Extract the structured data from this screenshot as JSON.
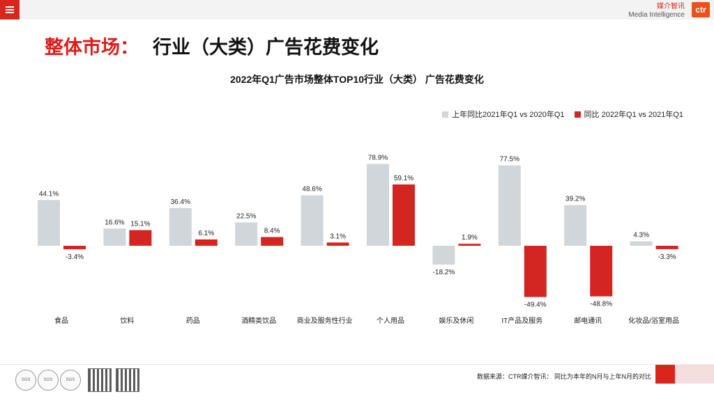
{
  "header": {
    "brand_cn": "媒介智讯",
    "brand_en": "Media Intelligence",
    "logo": "ctr"
  },
  "page_title": {
    "red": "整体市场：",
    "black": "行业（大类）广告花费变化"
  },
  "chart_data": {
    "type": "bar",
    "title": "2022年Q1广告市场整体TOP10行业（大类） 广告花费变化",
    "categories": [
      "食品",
      "饮料",
      "药品",
      "酒精类饮品",
      "商业及服务性行业",
      "个人用品",
      "娱乐及休闲",
      "IT产品及服务",
      "邮电通讯",
      "化妆品/浴室用品"
    ],
    "series": [
      {
        "name": "上年同比2021年Q1 vs 2020年Q1",
        "color": "#d0d6da",
        "values": [
          44.1,
          16.6,
          36.4,
          22.5,
          48.6,
          78.9,
          -18.2,
          77.5,
          39.2,
          4.3
        ],
        "labels": [
          "44.1%",
          "16.6%",
          "36.4%",
          "22.5%",
          "48.6%",
          "78.9%",
          "-18.2%",
          "77.5%",
          "39.2%",
          "4.3%"
        ]
      },
      {
        "name": "同比 2022年Q1 vs 2021年Q1",
        "color": "#d32620",
        "values": [
          -3.4,
          15.1,
          6.1,
          8.4,
          3.1,
          59.1,
          1.9,
          -49.4,
          -48.8,
          -3.3
        ],
        "labels": [
          "-3.4%",
          "15.1%",
          "6.1%",
          "8.4%",
          "3.1%",
          "59.1%",
          "1.9%",
          "-49.4%",
          "-48.8%",
          "-3.3%"
        ]
      }
    ],
    "ylim": [
      -55,
      85
    ],
    "legend_position": "top-right",
    "grid": false
  },
  "footer": {
    "source": "数据来源：CTR媒介智讯：  同比为本年的N月与上年N月的对比",
    "cert_label": "SGS"
  }
}
